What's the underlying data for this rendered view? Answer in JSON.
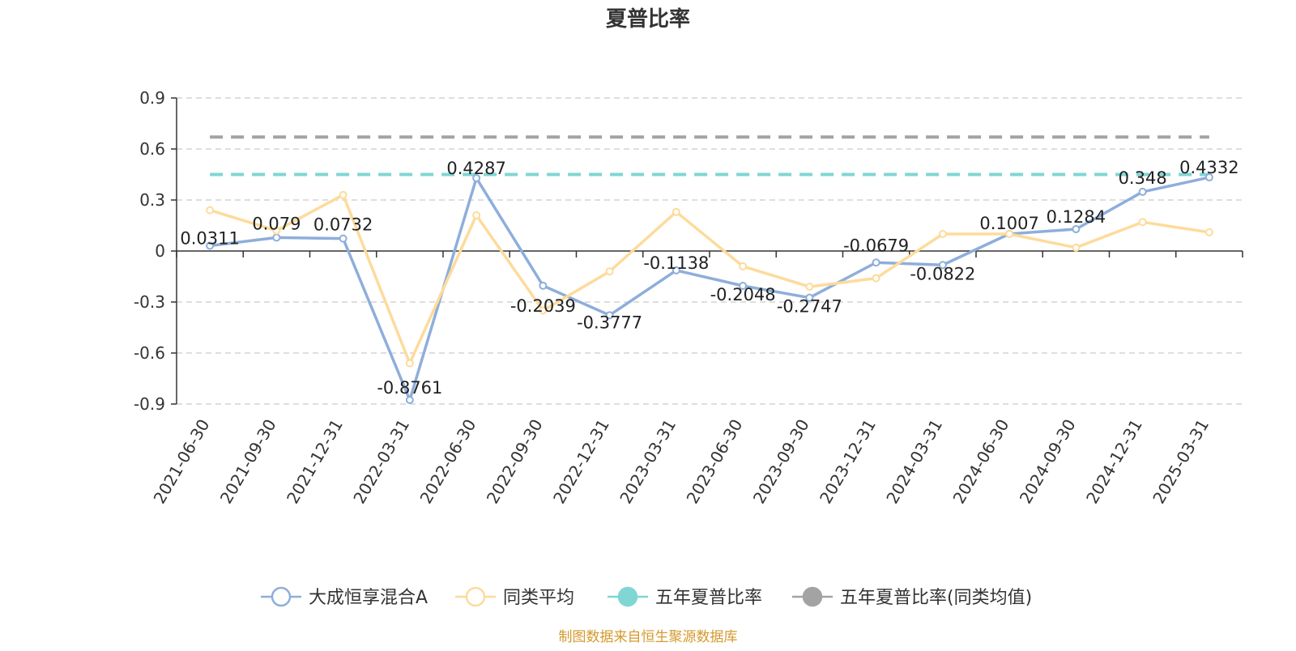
{
  "chart_data": {
    "type": "line",
    "title": "夏普比率",
    "source": "制图数据来自恒生聚源数据库",
    "categories": [
      "2021-06-30",
      "2021-09-30",
      "2021-12-31",
      "2022-03-31",
      "2022-06-30",
      "2022-09-30",
      "2022-12-31",
      "2023-03-31",
      "2023-06-30",
      "2023-09-30",
      "2023-12-31",
      "2024-03-31",
      "2024-06-30",
      "2024-09-30",
      "2024-12-31",
      "2025-03-31"
    ],
    "yticks": [
      "0.9",
      "0.6",
      "0.3",
      "0",
      "-0.3",
      "-0.6",
      "-0.9"
    ],
    "ylim": [
      -0.9,
      0.9
    ],
    "grid": true,
    "legend_position": "bottom",
    "series": [
      {
        "name": "大成恒享混合A",
        "color": "#8eaedb",
        "values": [
          0.0311,
          0.079,
          0.0732,
          -0.8761,
          0.4287,
          -0.2039,
          -0.3777,
          -0.1138,
          -0.2048,
          -0.2747,
          -0.0679,
          -0.0822,
          0.1007,
          0.1284,
          0.348,
          0.4332
        ],
        "labels": [
          "0.0311",
          "0.079",
          "0.0732",
          "-0.8761",
          "0.4287",
          "-0.2039",
          "-0.3777",
          "-0.1138",
          "-0.2048",
          "-0.2747",
          "-0.0679",
          "-0.0822",
          "0.1007",
          "0.1284",
          "0.348",
          "0.4332"
        ]
      },
      {
        "name": "同类平均",
        "color": "#fddb9b",
        "values": [
          0.24,
          0.12,
          0.33,
          -0.66,
          0.21,
          -0.35,
          -0.12,
          0.23,
          -0.09,
          -0.21,
          -0.16,
          0.1,
          0.1,
          0.02,
          0.17,
          0.11
        ]
      }
    ],
    "reference_lines": [
      {
        "name": "五年夏普比率",
        "color": "#7fd6d3",
        "value": 0.45
      },
      {
        "name": "五年夏普比率(同类均值)",
        "color": "#a3a3a3",
        "value": 0.67
      }
    ]
  }
}
